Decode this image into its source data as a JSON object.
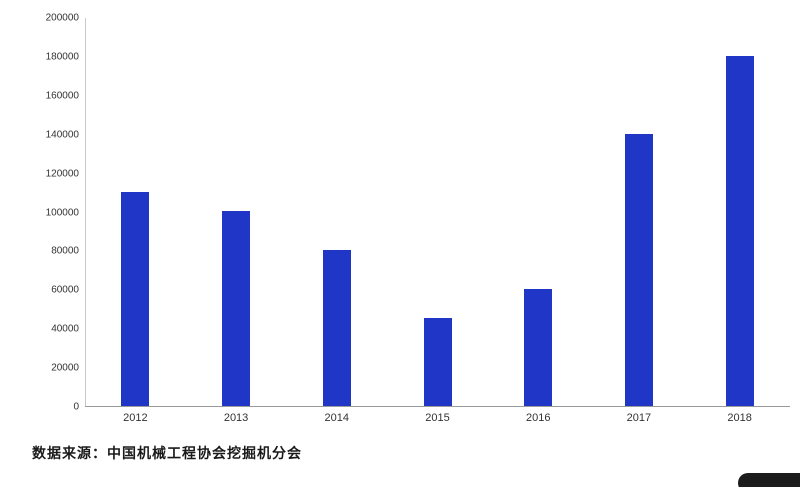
{
  "chart_data": {
    "type": "bar",
    "categories": [
      "2012",
      "2013",
      "2014",
      "2015",
      "2016",
      "2017",
      "2018"
    ],
    "values": [
      110000,
      100000,
      80000,
      45000,
      60000,
      140000,
      180000
    ],
    "title": "",
    "xlabel": "",
    "ylabel": "",
    "ylim": [
      0,
      200000
    ],
    "ytick_step": 20000,
    "yticks": [
      0,
      20000,
      40000,
      60000,
      80000,
      100000,
      120000,
      140000,
      160000,
      180000,
      200000
    ],
    "grid": false,
    "legend_position": "none",
    "bar_color": "#1f36c7"
  },
  "caption": "数据来源：中国机械工程协会挖掘机分会"
}
